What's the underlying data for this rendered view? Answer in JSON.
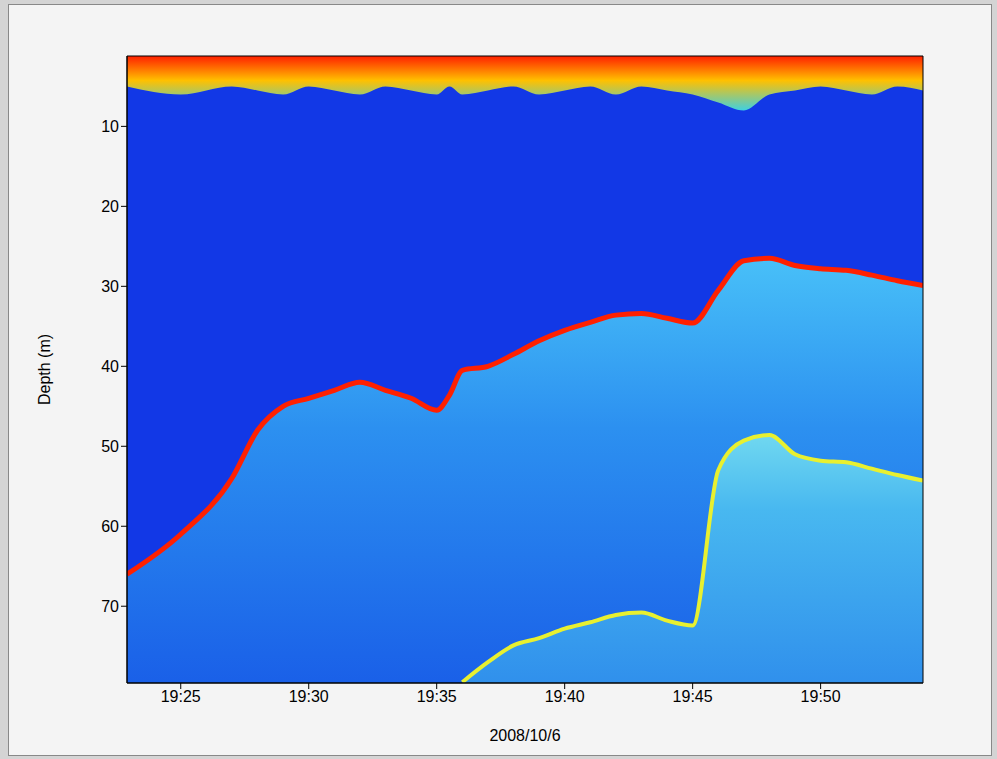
{
  "chart_data": {
    "type": "area",
    "xlabel": "2008/10/6",
    "ylabel": "Depth (m)",
    "x": [
      1162.9,
      1165,
      1167,
      1168,
      1169,
      1170,
      1171,
      1172,
      1173,
      1174,
      1175,
      1175.5,
      1176,
      1177,
      1178,
      1179,
      1180,
      1181,
      1182,
      1183,
      1184,
      1185,
      1186,
      1187,
      1188,
      1189,
      1190,
      1191,
      1192,
      1193,
      1194
    ],
    "series": [
      {
        "color": "#ff2000",
        "values": [
          66,
          61,
          54,
          48,
          45,
          44,
          43,
          42,
          43,
          44,
          45.5,
          43.6,
          40.5,
          40,
          38.5,
          36.8,
          35.5,
          34.5,
          33.6,
          33.4,
          34,
          34.6,
          30.5,
          26.8,
          26.5,
          27.4,
          27.8,
          28,
          28.6,
          29.3,
          29.9
        ]
      },
      {
        "color": "#e8f030",
        "values": [
          null,
          null,
          null,
          null,
          null,
          null,
          null,
          null,
          null,
          null,
          null,
          null,
          79.5,
          77,
          74.9,
          74,
          72.8,
          72,
          71.1,
          70.8,
          71.8,
          72.4,
          53,
          49.3,
          48.6,
          51,
          51.8,
          52,
          52.8,
          53.6,
          54.3
        ]
      }
    ],
    "surface": {
      "color": "#ff3000",
      "values": [
        5,
        6,
        5,
        5.5,
        6,
        5,
        5.5,
        6,
        5,
        5.5,
        6,
        5,
        6,
        5.5,
        5,
        6,
        5.5,
        5,
        6,
        5,
        5.5,
        6,
        7,
        8,
        6,
        5.5,
        5,
        5.5,
        6,
        5,
        5.5
      ]
    },
    "xlim": [
      1162.9,
      1194.0
    ],
    "xticks": [
      {
        "value": 1165,
        "label": "19:25"
      },
      {
        "value": 1170,
        "label": "19:30"
      },
      {
        "value": 1175,
        "label": "19:35"
      },
      {
        "value": 1180,
        "label": "19:40"
      },
      {
        "value": 1185,
        "label": "19:45"
      },
      {
        "value": 1190,
        "label": "19:50"
      }
    ],
    "ylim": [
      1.2,
      79.6
    ],
    "yticks": [
      10,
      20,
      30,
      40,
      50,
      60,
      70
    ]
  }
}
